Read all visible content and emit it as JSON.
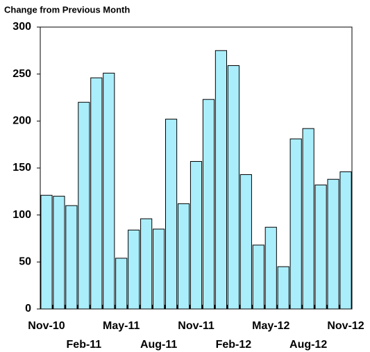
{
  "chart_data": {
    "type": "bar",
    "subtitle": "Change from Previous Month",
    "categories": [
      "Nov-10",
      null,
      null,
      "Feb-11",
      null,
      null,
      "May-11",
      null,
      null,
      "Aug-11",
      null,
      null,
      "Nov-11",
      null,
      null,
      "Feb-12",
      null,
      null,
      "May-12",
      null,
      null,
      "Aug-12",
      null,
      null,
      "Nov-12"
    ],
    "values": [
      121,
      120,
      110,
      220,
      246,
      251,
      54,
      84,
      96,
      85,
      202,
      112,
      157,
      223,
      275,
      259,
      143,
      68,
      87,
      45,
      181,
      192,
      132,
      138,
      146
    ],
    "color": "#aaeefc",
    "ylim": [
      0,
      300
    ],
    "yticks": [
      0,
      50,
      100,
      150,
      200,
      250,
      300
    ]
  }
}
